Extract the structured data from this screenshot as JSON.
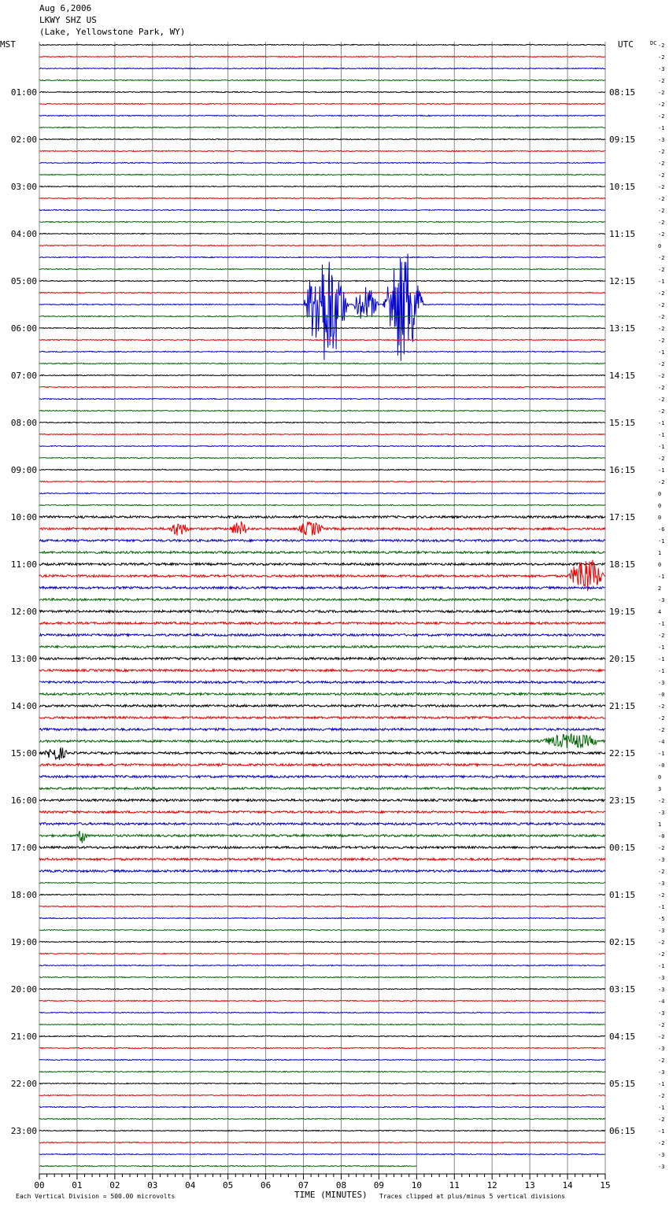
{
  "header": {
    "date": "Aug 6,2006",
    "station": "LKWY SHZ US",
    "location": "(Lake, Yellowstone Park, WY)"
  },
  "left_axis_label": "MST",
  "right_axis_label": "UTC",
  "dc_label": "DC",
  "colors": {
    "black": "#000000",
    "red": "#ee0000",
    "blue": "#0000cc",
    "green": "#006600",
    "grid": "#888888"
  },
  "footer": {
    "scale_note": "Each Vertical Division =  500.00 microvolts",
    "xlabel": "TIME (MINUTES)",
    "clip_note": "Traces clipped at plus/minus 5 vertical divisions"
  },
  "chart_data": {
    "type": "line",
    "title": "LKWY SHZ US",
    "xlabel": "TIME (MINUTES)",
    "xlim": [
      0,
      15
    ],
    "x_ticks": [
      "00",
      "01",
      "02",
      "03",
      "04",
      "05",
      "06",
      "07",
      "08",
      "09",
      "10",
      "11",
      "12",
      "13",
      "14",
      "15"
    ],
    "rows_per_hour": 4,
    "row_minutes": 15,
    "row_colors": [
      "black",
      "red",
      "blue",
      "green"
    ],
    "last_row_end_minute": 10,
    "mst_labels": [
      "01:00",
      "02:00",
      "03:00",
      "04:00",
      "05:00",
      "06:00",
      "07:00",
      "08:00",
      "09:00",
      "10:00",
      "11:00",
      "12:00",
      "13:00",
      "14:00",
      "15:00",
      "16:00",
      "17:00",
      "18:00",
      "19:00",
      "20:00",
      "21:00",
      "22:00",
      "23:00"
    ],
    "utc_labels": [
      "08:15",
      "09:15",
      "10:15",
      "11:15",
      "12:15",
      "13:15",
      "14:15",
      "15:15",
      "16:15",
      "17:15",
      "18:15",
      "19:15",
      "20:15",
      "21:15",
      "22:15",
      "23:15",
      "00:15",
      "01:15",
      "02:15",
      "03:15",
      "04:15",
      "05:15",
      "06:15"
    ],
    "dc_offsets": [
      "-2",
      "-2",
      "-3",
      "-2",
      "-2",
      "-2",
      "-2",
      "-1",
      "-3",
      "-2",
      "-2",
      "-2",
      "-2",
      "-2",
      "-2",
      "-2",
      "-2",
      "0",
      "-2",
      "-2",
      "-1",
      "-2",
      "-2",
      "-2",
      "-2",
      "-2",
      "-1",
      "-2",
      "-2",
      "-2",
      "-2",
      "-2",
      "-1",
      "-1",
      "-1",
      "-2",
      "-1",
      "-2",
      "0",
      "0",
      "0",
      "-6",
      "-1",
      "1",
      "0",
      "-1",
      "2",
      "-3",
      "4",
      "-1",
      "-2",
      "-1",
      "-1",
      "-1",
      "-3",
      "-0",
      "-2",
      "-2",
      "-2",
      "-4",
      "-1",
      "-0",
      "0",
      "3",
      "-2",
      "-3",
      "1",
      "-0",
      "-2",
      "-3",
      "-2",
      "-3",
      "-2",
      "-1",
      "-5",
      "-3",
      "-2",
      "-2",
      "-1",
      "-3",
      "-3",
      "-4",
      "-3",
      "-2",
      "-2",
      "-3",
      "-2",
      "-3",
      "-1",
      "-2",
      "-1",
      "-2",
      "-1",
      "-2",
      "-3",
      "-3"
    ],
    "events": [
      {
        "row": 22,
        "start_min": 7.0,
        "end_min": 8.2,
        "amplitude": "clipped"
      },
      {
        "row": 22,
        "start_min": 8.3,
        "end_min": 9.0,
        "amplitude": "large"
      },
      {
        "row": 22,
        "start_min": 9.1,
        "end_min": 10.2,
        "amplitude": "clipped"
      },
      {
        "row": 41,
        "start_min": 3.4,
        "end_min": 4.0,
        "amplitude": "moderate"
      },
      {
        "row": 41,
        "start_min": 5.0,
        "end_min": 5.6,
        "amplitude": "moderate"
      },
      {
        "row": 41,
        "start_min": 6.8,
        "end_min": 7.6,
        "amplitude": "moderate"
      },
      {
        "row": 45,
        "start_min": 14.0,
        "end_min": 15.0,
        "amplitude": "large"
      },
      {
        "row": 59,
        "start_min": 13.2,
        "end_min": 15.0,
        "amplitude": "moderate"
      },
      {
        "row": 60,
        "start_min": 0.1,
        "end_min": 0.8,
        "amplitude": "moderate"
      },
      {
        "row": 67,
        "start_min": 1.0,
        "end_min": 1.3,
        "amplitude": "moderate"
      }
    ]
  }
}
